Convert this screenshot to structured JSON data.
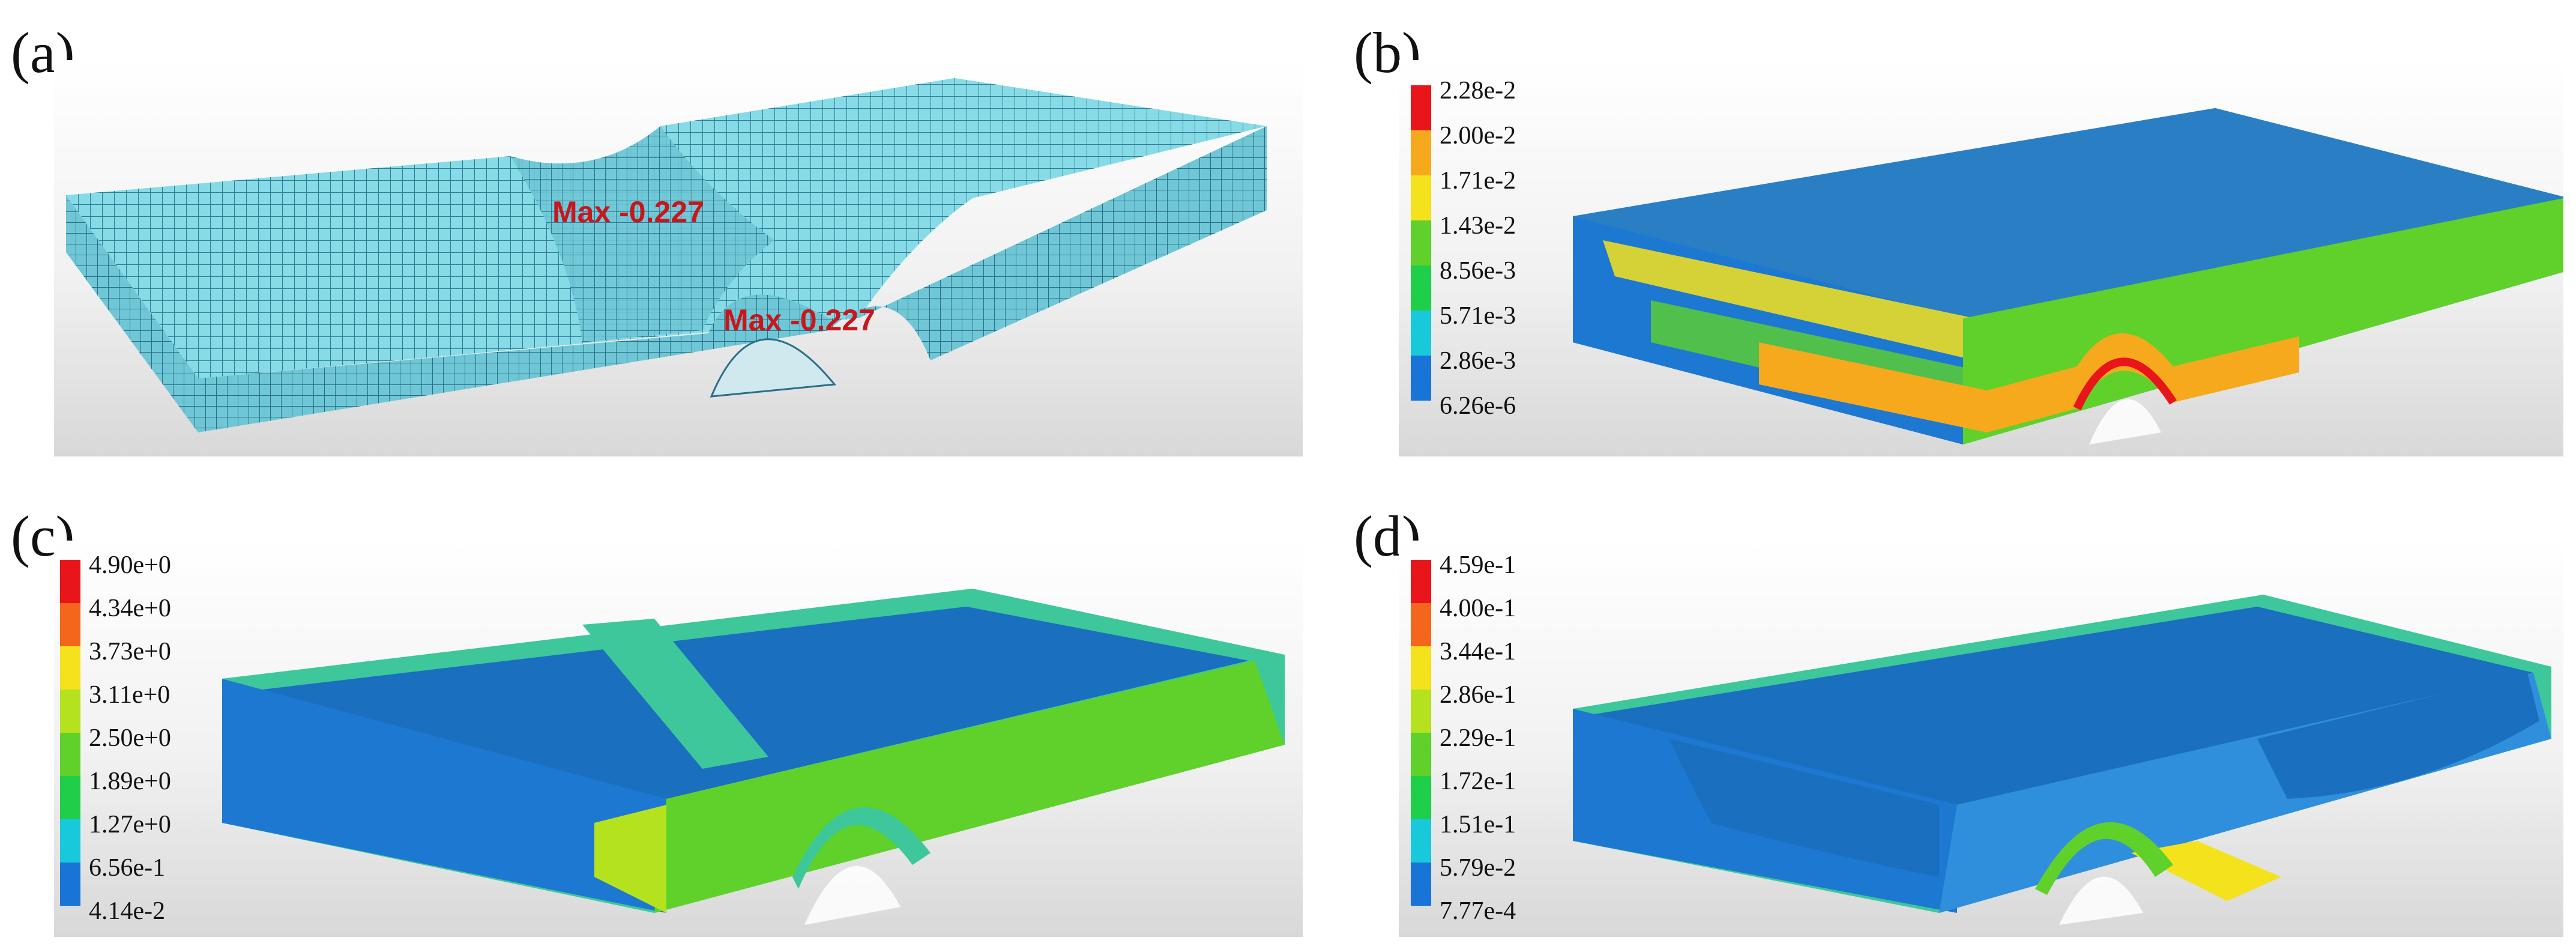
{
  "panels": [
    {
      "label": "(a)",
      "annotations": [
        "Max -0.227",
        "Max -0.227"
      ],
      "colors": {
        "surface": "#7fd6e3",
        "mesh": "#2a6f8a"
      }
    },
    {
      "label": "(b)",
      "legend": [
        "2.28e-2",
        "2.00e-2",
        "1.71e-2",
        "1.43e-2",
        "8.56e-3",
        "5.71e-3",
        "2.86e-3",
        "6.26e-6"
      ]
    },
    {
      "label": "(c)",
      "legend": [
        "4.90e+0",
        "4.34e+0",
        "3.73e+0",
        "3.11e+0",
        "2.50e+0",
        "1.89e+0",
        "1.27e+0",
        "6.56e-1",
        "4.14e-2"
      ]
    },
    {
      "label": "(d)",
      "legend": [
        "4.59e-1",
        "4.00e-1",
        "3.44e-1",
        "2.86e-1",
        "2.29e-1",
        "1.72e-1",
        "1.51e-1",
        "5.79e-2",
        "7.77e-4"
      ]
    }
  ],
  "colorscale": [
    "#e8151b",
    "#f4661c",
    "#f7a91e",
    "#f4e21c",
    "#b4e21e",
    "#5fd12a",
    "#1fcf4a",
    "#1fd1a0",
    "#18c9dc",
    "#1874d6"
  ]
}
